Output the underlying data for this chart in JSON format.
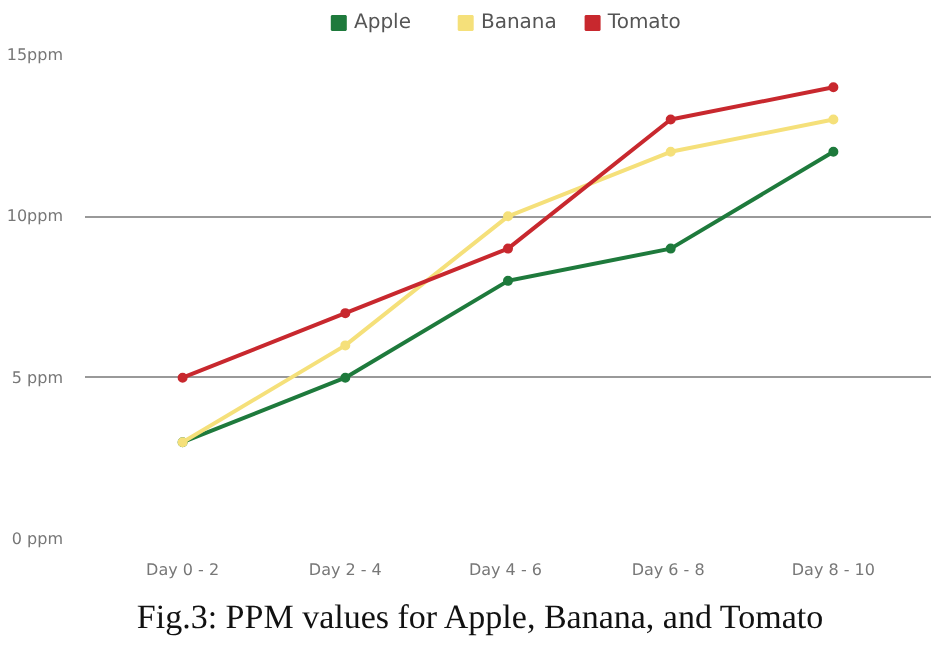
{
  "chart_data": {
    "type": "line",
    "categories": [
      "Day 0 - 2",
      "Day 2 - 4",
      "Day  4 - 6",
      "Day  6 - 8",
      "Day 8 - 10"
    ],
    "series": [
      {
        "name": "Apple",
        "color": "#1e7a3c",
        "values": [
          3,
          5,
          8,
          9,
          12
        ]
      },
      {
        "name": "Banana",
        "color": "#f5e07a",
        "values": [
          3,
          6,
          10,
          12,
          13
        ]
      },
      {
        "name": "Tomato",
        "color": "#c8282e",
        "values": [
          5,
          7,
          9,
          13,
          14
        ]
      }
    ],
    "ylim": [
      0,
      15
    ],
    "yticks": [
      {
        "value": 0,
        "label": "0 ppm"
      },
      {
        "value": 5,
        "label": "5 ppm"
      },
      {
        "value": 10,
        "label": "10ppm"
      },
      {
        "value": 15,
        "label": "15ppm"
      }
    ],
    "grid": "y",
    "legend": "top",
    "marker": "circle",
    "line_style": "solid",
    "annotations": [
      "Fig.3: PPM values for Apple, Banana, and Tomato"
    ]
  }
}
